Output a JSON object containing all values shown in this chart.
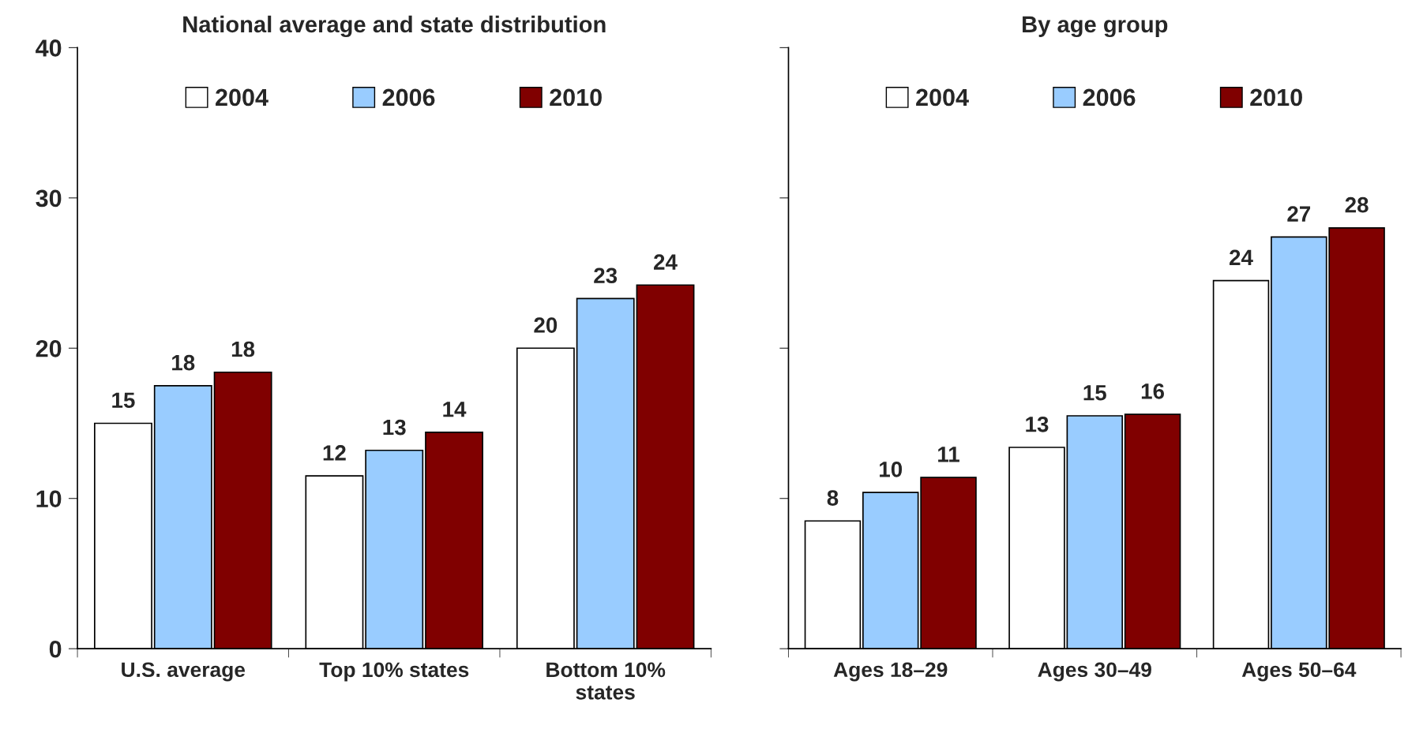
{
  "chart_data": [
    {
      "type": "bar",
      "title": "National average and state distribution",
      "categories": [
        "U.S. average",
        "Top 10% states",
        "Bottom 10%\nstates"
      ],
      "series": [
        {
          "name": "2004",
          "color": "#ffffff",
          "values": [
            15.0,
            11.5,
            20.0
          ],
          "value_labels": [
            "15",
            "12",
            "20"
          ]
        },
        {
          "name": "2006",
          "color": "#99ccff",
          "values": [
            17.5,
            13.2,
            23.3
          ],
          "value_labels": [
            "18",
            "13",
            "23"
          ]
        },
        {
          "name": "2010",
          "color": "#800000",
          "values": [
            18.4,
            14.4,
            24.2
          ],
          "value_labels": [
            "18",
            "14",
            "24"
          ]
        }
      ],
      "ylim": [
        0,
        40
      ],
      "yticks": [
        0,
        10,
        20,
        30,
        40
      ],
      "legend": "top",
      "grid": false
    },
    {
      "type": "bar",
      "title": "By age group",
      "categories": [
        "Ages 18–29",
        "Ages 30–49",
        "Ages 50–64"
      ],
      "series": [
        {
          "name": "2004",
          "color": "#ffffff",
          "values": [
            8.5,
            13.4,
            24.5
          ],
          "value_labels": [
            "8",
            "13",
            "24"
          ]
        },
        {
          "name": "2006",
          "color": "#99ccff",
          "values": [
            10.4,
            15.5,
            27.4
          ],
          "value_labels": [
            "10",
            "15",
            "27"
          ]
        },
        {
          "name": "2010",
          "color": "#800000",
          "values": [
            11.4,
            15.6,
            28.0
          ],
          "value_labels": [
            "11",
            "16",
            "28"
          ]
        }
      ],
      "ylim": [
        0,
        40
      ],
      "yticks": [
        0,
        10,
        20,
        30,
        40
      ],
      "tick_labels": "x",
      "legend": "top",
      "grid": false
    }
  ]
}
